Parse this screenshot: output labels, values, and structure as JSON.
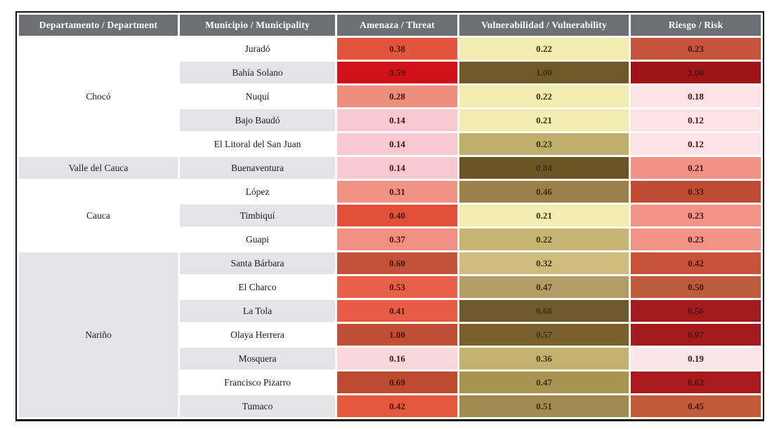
{
  "colors": {
    "header_bg": "#6D6E71",
    "header_text": "#FFFFFF",
    "zebra_gray": "#E4E4E6",
    "row_white": "#FFFFFF",
    "threat_risk_value_text": "#4A150C",
    "vulnerability_value_text": "#3B3310",
    "name_text": "#1E1C1D",
    "table_border": "#121212"
  },
  "table": {
    "headers": [
      "Departamento / Department",
      "Municipio / Municipality",
      "Amenaza / Threat",
      "Vulnerabilidad / Vulnerability",
      "Riesgo / Risk"
    ],
    "department_groups": [
      {
        "name": "Chocó",
        "rowspan": 5,
        "shaded": false
      },
      {
        "name": "Valle del Cauca",
        "rowspan": 1,
        "shaded": true
      },
      {
        "name": "Cauca",
        "rowspan": 3,
        "shaded": false
      },
      {
        "name": "Nariño",
        "rowspan": 7,
        "shaded": true
      }
    ],
    "rows": [
      {
        "municipality": "Juradó",
        "threat": {
          "value": "0.38",
          "bg": "#E0553C"
        },
        "vulnerability": {
          "value": "0.22",
          "bg": "#F1EDB0"
        },
        "risk": {
          "value": "0.23",
          "bg": "#C4553C"
        }
      },
      {
        "municipality": "Bahía Solano",
        "threat": {
          "value": "0.59",
          "bg": "#D01117"
        },
        "vulnerability": {
          "value": "1.00",
          "bg": "#6F5829"
        },
        "risk": {
          "value": "1.00",
          "bg": "#9E1417"
        }
      },
      {
        "municipality": "Nuquí",
        "threat": {
          "value": "0.28",
          "bg": "#EC8F7F"
        },
        "vulnerability": {
          "value": "0.22",
          "bg": "#F1EDB0"
        },
        "risk": {
          "value": "0.18",
          "bg": "#FBE3E7"
        }
      },
      {
        "municipality": "Bajo Baudó",
        "threat": {
          "value": "0.14",
          "bg": "#F7C9CE"
        },
        "vulnerability": {
          "value": "0.21",
          "bg": "#F1EDB0"
        },
        "risk": {
          "value": "0.12",
          "bg": "#FBE3E7"
        }
      },
      {
        "municipality": "El Litoral del San Juan",
        "threat": {
          "value": "0.14",
          "bg": "#F7C9CE"
        },
        "vulnerability": {
          "value": "0.23",
          "bg": "#BFAF6E"
        },
        "risk": {
          "value": "0.12",
          "bg": "#FBE3E7"
        }
      },
      {
        "municipality": "Buenaventura",
        "threat": {
          "value": "0.14",
          "bg": "#F7C9CE"
        },
        "vulnerability": {
          "value": "0.84",
          "bg": "#6B5527"
        },
        "risk": {
          "value": "0.21",
          "bg": "#F09384"
        }
      },
      {
        "municipality": "López",
        "threat": {
          "value": "0.31",
          "bg": "#EF9484"
        },
        "vulnerability": {
          "value": "0.46",
          "bg": "#9B7F49"
        },
        "risk": {
          "value": "0.33",
          "bg": "#BE4B32"
        }
      },
      {
        "municipality": "Timbiquí",
        "threat": {
          "value": "0.40",
          "bg": "#E14F38"
        },
        "vulnerability": {
          "value": "0.21",
          "bg": "#F1EDB0"
        },
        "risk": {
          "value": "0.23",
          "bg": "#F09488"
        }
      },
      {
        "municipality": "Guapi",
        "threat": {
          "value": "0.37",
          "bg": "#F09082"
        },
        "vulnerability": {
          "value": "0.22",
          "bg": "#C5B473"
        },
        "risk": {
          "value": "0.23",
          "bg": "#F09488"
        }
      },
      {
        "municipality": "Santa Bárbara",
        "threat": {
          "value": "0.60",
          "bg": "#C3523A"
        },
        "vulnerability": {
          "value": "0.32",
          "bg": "#CDBC7E"
        },
        "risk": {
          "value": "0.42",
          "bg": "#C6523A"
        }
      },
      {
        "municipality": "El Charco",
        "threat": {
          "value": "0.53",
          "bg": "#E8604A"
        },
        "vulnerability": {
          "value": "0.47",
          "bg": "#B29D66"
        },
        "risk": {
          "value": "0.50",
          "bg": "#BD5C3C"
        }
      },
      {
        "municipality": "La Tola",
        "threat": {
          "value": "0.41",
          "bg": "#E65C46"
        },
        "vulnerability": {
          "value": "0.68",
          "bg": "#6E592C"
        },
        "risk": {
          "value": "0.56",
          "bg": "#A31B1C"
        }
      },
      {
        "municipality": "Olaya Herrera",
        "threat": {
          "value": "1.00",
          "bg": "#C04E35"
        },
        "vulnerability": {
          "value": "0.57",
          "bg": "#7A602F"
        },
        "risk": {
          "value": "0.97",
          "bg": "#A31B1C"
        }
      },
      {
        "municipality": "Mosquera",
        "threat": {
          "value": "0.16",
          "bg": "#F8D7DB"
        },
        "vulnerability": {
          "value": "0.36",
          "bg": "#C2B170"
        },
        "risk": {
          "value": "0.19",
          "bg": "#FAE6EA"
        }
      },
      {
        "municipality": "Francisco Pizarro",
        "threat": {
          "value": "0.69",
          "bg": "#BD4B31"
        },
        "vulnerability": {
          "value": "0.47",
          "bg": "#A99352"
        },
        "risk": {
          "value": "0.62",
          "bg": "#A81A1B"
        }
      },
      {
        "municipality": "Tumaco",
        "threat": {
          "value": "0.42",
          "bg": "#E4573B"
        },
        "vulnerability": {
          "value": "0.51",
          "bg": "#A18A50"
        },
        "risk": {
          "value": "0.45",
          "bg": "#C25B3A"
        }
      }
    ]
  },
  "chart_data": {
    "type": "table",
    "title": "",
    "columns": [
      "Departamento / Department",
      "Municipio / Municipality",
      "Amenaza / Threat",
      "Vulnerabilidad / Vulnerability",
      "Riesgo / Risk"
    ],
    "rows": [
      [
        "Chocó",
        "Juradó",
        0.38,
        0.22,
        0.23
      ],
      [
        "Chocó",
        "Bahía Solano",
        0.59,
        1.0,
        1.0
      ],
      [
        "Chocó",
        "Nuquí",
        0.28,
        0.22,
        0.18
      ],
      [
        "Chocó",
        "Bajo Baudó",
        0.14,
        0.21,
        0.12
      ],
      [
        "Chocó",
        "El Litoral del San Juan",
        0.14,
        0.23,
        0.12
      ],
      [
        "Valle del Cauca",
        "Buenaventura",
        0.14,
        0.84,
        0.21
      ],
      [
        "Cauca",
        "López",
        0.31,
        0.46,
        0.33
      ],
      [
        "Cauca",
        "Timbiquí",
        0.4,
        0.21,
        0.23
      ],
      [
        "Cauca",
        "Guapi",
        0.37,
        0.22,
        0.23
      ],
      [
        "Nariño",
        "Santa Bárbara",
        0.6,
        0.32,
        0.42
      ],
      [
        "Nariño",
        "El Charco",
        0.53,
        0.47,
        0.5
      ],
      [
        "Nariño",
        "La Tola",
        0.41,
        0.68,
        0.56
      ],
      [
        "Nariño",
        "Olaya Herrera",
        1.0,
        0.57,
        0.97
      ],
      [
        "Nariño",
        "Mosquera",
        0.16,
        0.36,
        0.19
      ],
      [
        "Nariño",
        "Francisco Pizarro",
        0.69,
        0.47,
        0.62
      ],
      [
        "Nariño",
        "Tumaco",
        0.42,
        0.51,
        0.45
      ]
    ],
    "layout_hints": {
      "cell_shading": "heatmap: red scale for threat and risk, yellow-to-brown scale for vulnerability",
      "department_column_merged": true,
      "zebra_striping": "municipality and single-row department cells alternate white / light gray"
    }
  }
}
